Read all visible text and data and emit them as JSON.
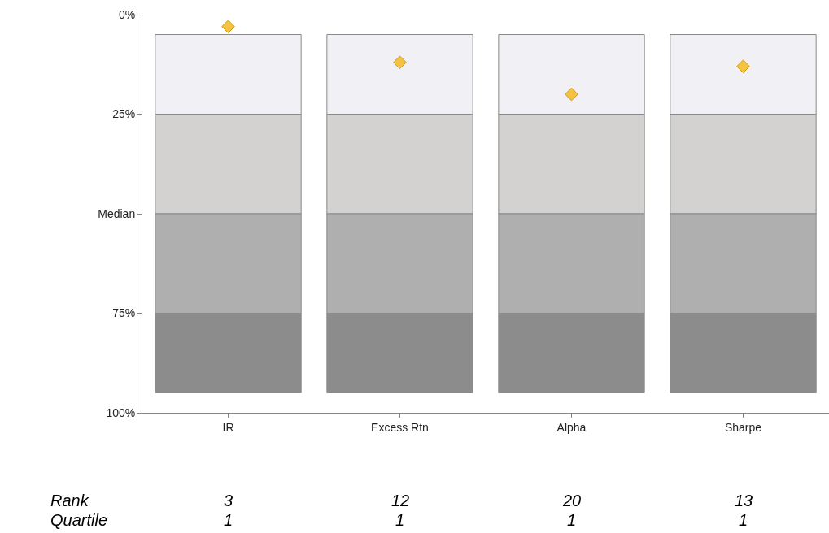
{
  "chart_data": {
    "type": "bar",
    "categories": [
      "IR",
      "Excess Rtn",
      "Alpha",
      "Sharpe"
    ],
    "series": [
      {
        "color": "#f0f0f5",
        "base": [
          5,
          5,
          5,
          5
        ],
        "values": [
          20,
          20,
          20,
          20
        ]
      },
      {
        "color": "#d3d2d0",
        "base": [
          25,
          25,
          25,
          25
        ],
        "values": [
          25,
          25,
          25,
          25
        ]
      },
      {
        "color": "#afafaf",
        "base": [
          50,
          50,
          50,
          50
        ],
        "values": [
          25,
          25,
          25,
          25
        ]
      },
      {
        "color": "#8c8c8c",
        "base": [
          75,
          75,
          75,
          75
        ],
        "values": [
          20,
          20,
          20,
          20
        ]
      },
      {
        "type": "scatter",
        "marker": "diamond",
        "color": "#f5c242",
        "x": [
          "IR",
          "Excess Rtn",
          "Alpha",
          "Sharpe"
        ],
        "values": [
          3,
          12,
          20,
          13
        ],
        "value_labels": [
          "3",
          "12",
          "20",
          "13"
        ]
      }
    ],
    "ylim": [
      100,
      0
    ],
    "yticks": [
      {
        "value": 0,
        "label": "0%"
      },
      {
        "value": 25,
        "label": "25%"
      },
      {
        "value": 50,
        "label": "Median"
      },
      {
        "value": 75,
        "label": "75%"
      },
      {
        "value": 100,
        "label": "100%"
      }
    ],
    "annotations": [
      "Rank",
      "Quartile",
      "1",
      "1",
      "1",
      "1"
    ]
  }
}
